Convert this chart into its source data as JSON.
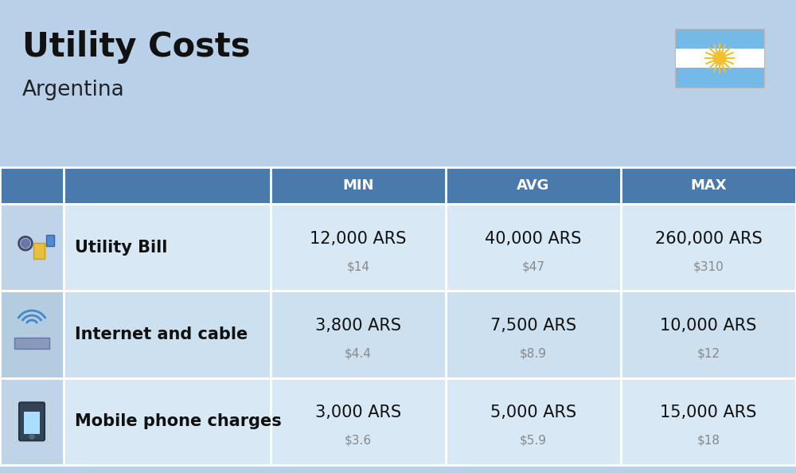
{
  "title": "Utility Costs",
  "subtitle": "Argentina",
  "background_color": "#b8d0e8",
  "header_bg_color": "#4a7aab",
  "header_text_color": "#ffffff",
  "row_even_icon_bg": "#c0d4e8",
  "row_odd_icon_bg": "#b4cce0",
  "row_even_bg": "#d8e8f4",
  "row_odd_bg": "#cce0f0",
  "rows": [
    {
      "label": "Utility Bill",
      "min_ars": "12,000 ARS",
      "min_usd": "$14",
      "avg_ars": "40,000 ARS",
      "avg_usd": "$47",
      "max_ars": "260,000 ARS",
      "max_usd": "$310"
    },
    {
      "label": "Internet and cable",
      "min_ars": "3,800 ARS",
      "min_usd": "$4.4",
      "avg_ars": "7,500 ARS",
      "avg_usd": "$8.9",
      "max_ars": "10,000 ARS",
      "max_usd": "$12"
    },
    {
      "label": "Mobile phone charges",
      "min_ars": "3,000 ARS",
      "min_usd": "$3.6",
      "avg_ars": "5,000 ARS",
      "avg_usd": "$5.9",
      "max_ars": "15,000 ARS",
      "max_usd": "$18"
    }
  ],
  "col_headers": [
    "MIN",
    "AVG",
    "MAX"
  ],
  "title_fontsize": 30,
  "subtitle_fontsize": 19,
  "header_fontsize": 13,
  "cell_fontsize": 15,
  "cell_usd_fontsize": 11,
  "label_fontsize": 15,
  "flag_colors": [
    "#74b9e8",
    "#ffffff",
    "#74b9e8"
  ],
  "sun_color": "#f0c030"
}
